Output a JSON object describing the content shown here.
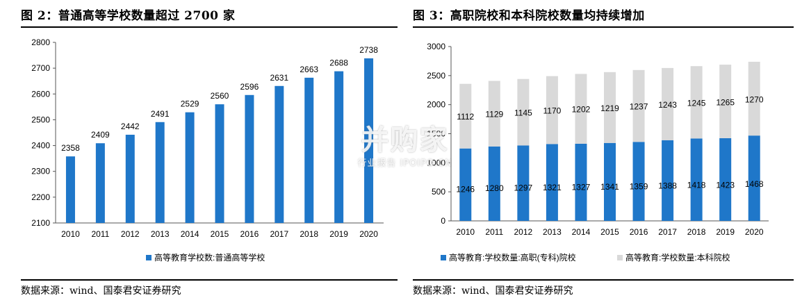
{
  "left": {
    "title": "图 2：普通高等学校数量超过 2700 家",
    "source": "数据来源：wind、国泰君安证券研究",
    "chart_data": {
      "type": "bar",
      "categories": [
        "2010",
        "2011",
        "2012",
        "2013",
        "2014",
        "2015",
        "2016",
        "2017",
        "2018",
        "2019",
        "2020"
      ],
      "series": [
        {
          "name": "高等教育学校数:普通高等学校",
          "values": [
            2358,
            2409,
            2442,
            2491,
            2529,
            2560,
            2596,
            2631,
            2663,
            2688,
            2738
          ],
          "color": "#1f77c9"
        }
      ],
      "ylim": [
        2100,
        2800
      ],
      "yticks": [
        2100,
        2200,
        2300,
        2400,
        2500,
        2600,
        2700,
        2800
      ],
      "grid": false,
      "legend": "bottom",
      "data_labels": true
    }
  },
  "right": {
    "title": "图 3：高职院校和本科院校数量均持续增加",
    "source": "数据来源：wind、国泰君安证券研究",
    "chart_data": {
      "type": "bar",
      "stacked": true,
      "categories": [
        "2010",
        "2011",
        "2012",
        "2013",
        "2014",
        "2015",
        "2016",
        "2017",
        "2018",
        "2019",
        "2020"
      ],
      "series": [
        {
          "name": "高等教育:学校数量:高职(专科)院校",
          "values": [
            1246,
            1280,
            1297,
            1321,
            1327,
            1341,
            1359,
            1388,
            1418,
            1423,
            1468
          ],
          "color": "#1f77c9"
        },
        {
          "name": "高等教育:学校数量:本科院校",
          "values": [
            1112,
            1129,
            1145,
            1170,
            1202,
            1219,
            1237,
            1243,
            1245,
            1265,
            1270
          ],
          "color": "#d9d9d9"
        }
      ],
      "ylim": [
        0,
        3000
      ],
      "yticks": [
        0,
        500,
        1000,
        1500,
        2000,
        2500,
        3000
      ],
      "grid": false,
      "legend": "bottom",
      "data_labels": true
    }
  },
  "watermark": {
    "main": "并购家",
    "sub": "行业报告 IPOIPO.CN"
  }
}
